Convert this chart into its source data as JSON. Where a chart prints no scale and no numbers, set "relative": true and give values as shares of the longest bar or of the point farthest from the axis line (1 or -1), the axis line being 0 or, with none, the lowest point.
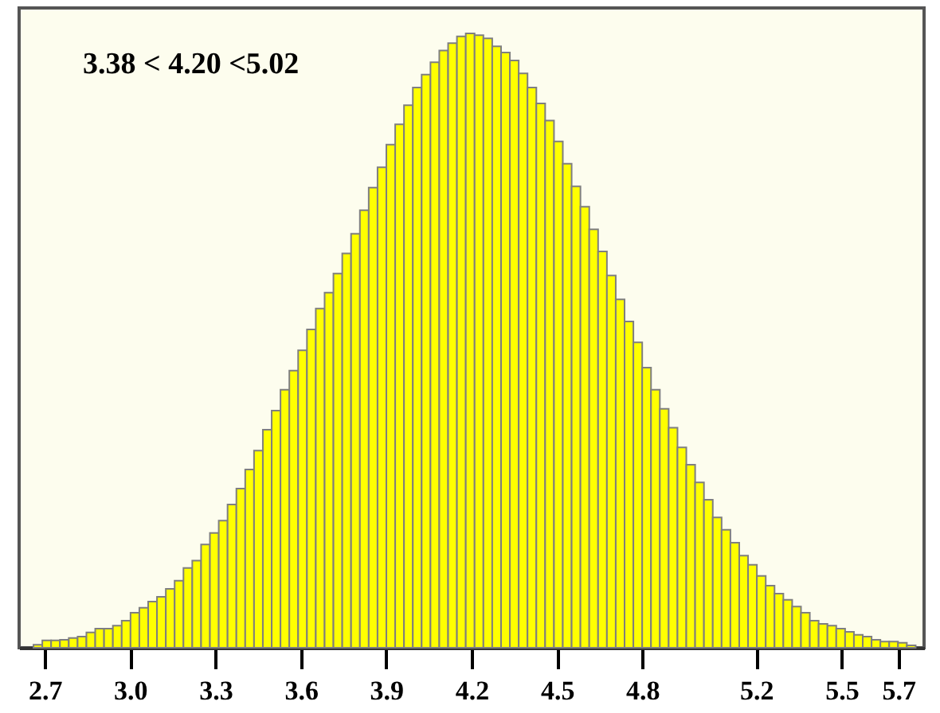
{
  "chart_data": {
    "type": "bar",
    "relative": true,
    "x": [
      2.676,
      2.707,
      2.738,
      2.769,
      2.8,
      2.831,
      2.862,
      2.893,
      2.924,
      2.955,
      2.986,
      3.017,
      3.048,
      3.079,
      3.11,
      3.141,
      3.172,
      3.203,
      3.234,
      3.265,
      3.296,
      3.327,
      3.358,
      3.389,
      3.42,
      3.451,
      3.482,
      3.513,
      3.544,
      3.575,
      3.606,
      3.637,
      3.668,
      3.699,
      3.73,
      3.761,
      3.792,
      3.823,
      3.854,
      3.885,
      3.916,
      3.947,
      3.978,
      4.009,
      4.04,
      4.071,
      4.102,
      4.133,
      4.164,
      4.195,
      4.226,
      4.257,
      4.288,
      4.319,
      4.35,
      4.381,
      4.412,
      4.443,
      4.474,
      4.505,
      4.536,
      4.567,
      4.598,
      4.629,
      4.66,
      4.691,
      4.722,
      4.753,
      4.784,
      4.815,
      4.846,
      4.877,
      4.908,
      4.939,
      4.97,
      5.001,
      5.032,
      5.063,
      5.094,
      5.125,
      5.156,
      5.187,
      5.218,
      5.249,
      5.28,
      5.311,
      5.342,
      5.373,
      5.404,
      5.435,
      5.466,
      5.497,
      5.528,
      5.559,
      5.59,
      5.621,
      5.652,
      5.683,
      5.714,
      5.745
    ],
    "values": [
      0.005,
      0.012,
      0.012,
      0.013,
      0.016,
      0.018,
      0.025,
      0.031,
      0.031,
      0.036,
      0.044,
      0.057,
      0.065,
      0.075,
      0.083,
      0.096,
      0.109,
      0.13,
      0.142,
      0.168,
      0.187,
      0.207,
      0.233,
      0.259,
      0.29,
      0.321,
      0.355,
      0.386,
      0.42,
      0.451,
      0.484,
      0.518,
      0.552,
      0.578,
      0.609,
      0.642,
      0.674,
      0.712,
      0.749,
      0.782,
      0.819,
      0.852,
      0.883,
      0.912,
      0.933,
      0.953,
      0.972,
      0.984,
      0.995,
      1.0,
      0.997,
      0.992,
      0.979,
      0.969,
      0.956,
      0.935,
      0.912,
      0.886,
      0.858,
      0.824,
      0.788,
      0.751,
      0.718,
      0.681,
      0.645,
      0.606,
      0.567,
      0.531,
      0.497,
      0.456,
      0.42,
      0.389,
      0.358,
      0.326,
      0.298,
      0.269,
      0.241,
      0.212,
      0.192,
      0.171,
      0.15,
      0.135,
      0.117,
      0.101,
      0.088,
      0.078,
      0.067,
      0.057,
      0.044,
      0.039,
      0.036,
      0.031,
      0.026,
      0.021,
      0.018,
      0.013,
      0.01,
      0.01,
      0.008,
      0.004
    ],
    "color": "#ffff00",
    "xlim": [
      2.61,
      5.79
    ],
    "xticks": [
      {
        "value": 2.7,
        "label": "2.7"
      },
      {
        "value": 3.0,
        "label": "3.0"
      },
      {
        "value": 3.3,
        "label": "3.3"
      },
      {
        "value": 3.6,
        "label": "3.6"
      },
      {
        "value": 3.9,
        "label": "3.9"
      },
      {
        "value": 4.2,
        "label": "4.2"
      },
      {
        "value": 4.5,
        "label": "4.5"
      },
      {
        "value": 4.8,
        "label": "4.8"
      },
      {
        "value": 5.2,
        "label": "5.2"
      },
      {
        "value": 5.5,
        "label": "5.5"
      },
      {
        "value": 5.7,
        "label": "5.7"
      }
    ],
    "annotations": [
      "3.38 < 4.20 <5.02"
    ]
  }
}
